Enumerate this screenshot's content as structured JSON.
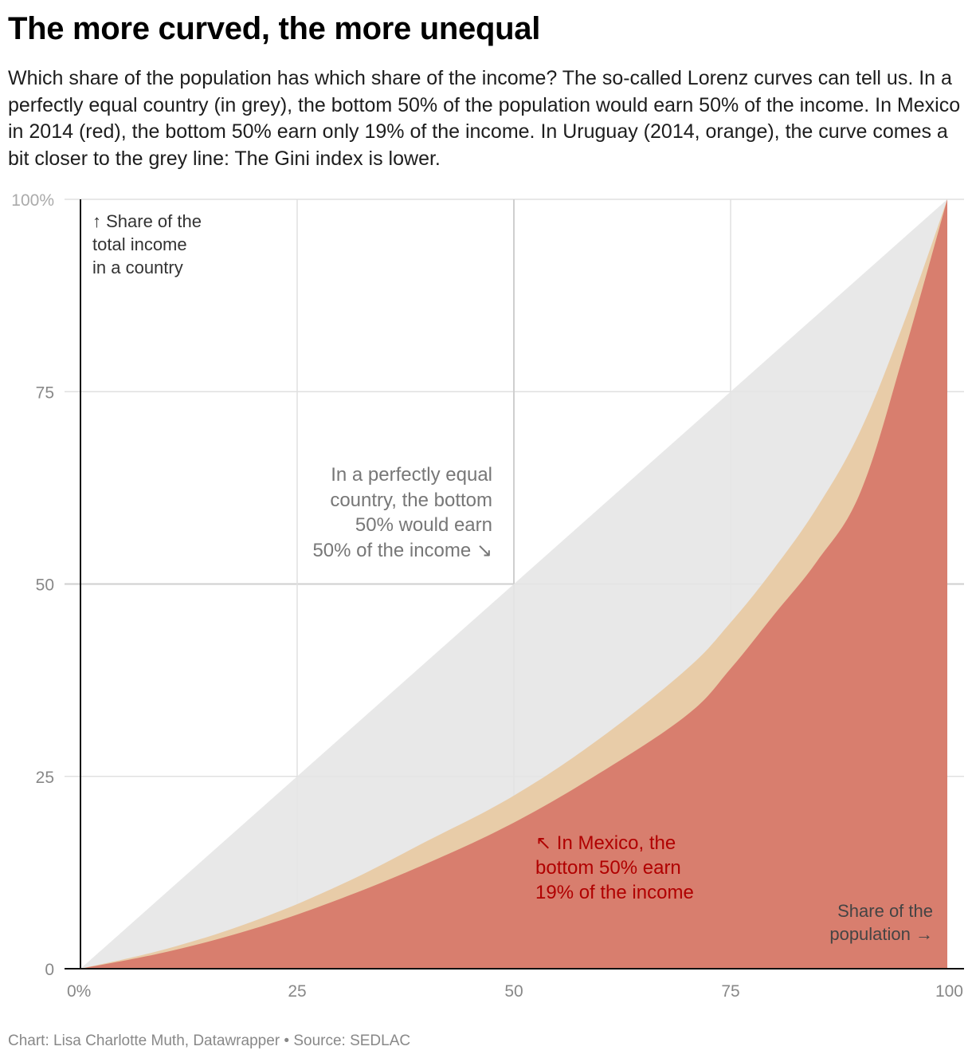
{
  "title": "The more curved, the more unequal",
  "subtitle": "Which share of the population has which share of the income? The so-called Lorenz curves can tell us. In a perfectly equal country (in grey), the bottom 50% of the population would earn 50% of the income. In Mexico in 2014 (red), the bottom 50% earn only 19% of the income. In Uruguay (2014, orange), the curve comes a bit closer to the grey line: The Gini index is lower.",
  "annotations": {
    "y_axis": [
      "↑ Share of the",
      "total income",
      "in a country"
    ],
    "equal": [
      "In a perfectly equal",
      "country, the bottom",
      "50% would earn",
      "50% of the income ↘"
    ],
    "mexico": [
      "↖ In Mexico, the",
      "bottom 50% earn",
      "19% of the income"
    ],
    "x_axis": [
      "Share of the",
      "population →"
    ]
  },
  "footer": {
    "byline": "Chart: Lisa Charlotte Muth, Datawrapper",
    "separator": " • ",
    "source": "Source: SEDLAC"
  },
  "colors": {
    "equal": "#e6e6e6",
    "uruguay": "#e8caa4",
    "mexico": "#d7796a",
    "mexico_text": "#b00000",
    "grid": "#e0e0e0",
    "grid_mid": "#cfcfcf",
    "axis": "#111111",
    "tick_text": "#888888",
    "tick_text_light": "#aaaaaa"
  },
  "chart_data": {
    "type": "area",
    "title": "The more curved, the more unequal",
    "xlabel": "Share of the population",
    "ylabel": "Share of the total income in a country",
    "xlim": [
      0,
      100
    ],
    "ylim": [
      0,
      100
    ],
    "x_ticks": [
      0,
      25,
      50,
      75,
      100
    ],
    "x_tick_labels": [
      "0%",
      "25",
      "50",
      "75",
      "100"
    ],
    "y_ticks": [
      0,
      25,
      50,
      75,
      100
    ],
    "y_tick_labels": [
      "0",
      "25",
      "50",
      "75",
      "100%"
    ],
    "x": [
      0,
      10,
      20,
      30,
      40,
      50,
      60,
      70,
      75,
      80,
      85,
      90,
      95,
      100
    ],
    "series": [
      {
        "name": "Perfect equality",
        "values": [
          0,
          10,
          20,
          30,
          40,
          50,
          60,
          70,
          75,
          80,
          85,
          90,
          95,
          100
        ]
      },
      {
        "name": "Uruguay 2014",
        "values": [
          0,
          2.6,
          6.2,
          10.9,
          16.6,
          22.5,
          30,
          39,
          45,
          52,
          60,
          70,
          84,
          100
        ]
      },
      {
        "name": "Mexico 2014",
        "values": [
          0,
          2.2,
          5.2,
          9.1,
          13.7,
          19,
          25.5,
          33,
          39,
          46,
          53,
          62,
          80,
          100
        ]
      }
    ]
  }
}
